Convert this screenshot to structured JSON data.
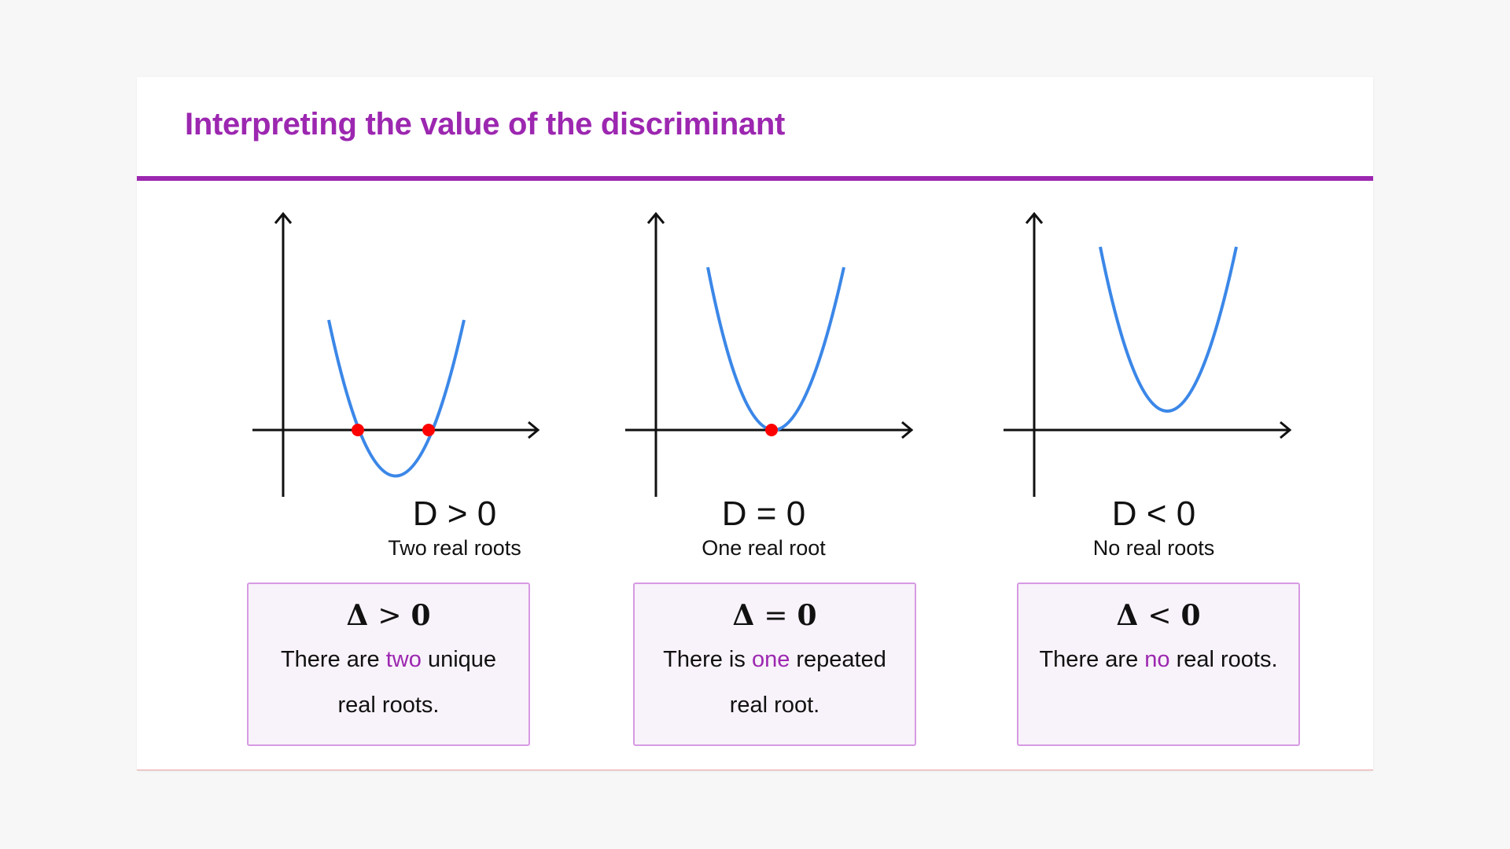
{
  "title": "Interpreting the value of the discriminant",
  "colors": {
    "accent": "#9c27b0",
    "curve": "#3b87e8",
    "root_point": "#ff0000",
    "axis": "#111111",
    "box_border": "#d79ae3",
    "box_fill": "#f8f2fa"
  },
  "cases": [
    {
      "relation": "D > 0",
      "description": "Two real roots",
      "symbol": "Δ",
      "operator": ">",
      "value": "0",
      "text_before": "There are ",
      "highlight": "two",
      "text_after": " unique real roots.",
      "root_count": 2
    },
    {
      "relation": "D = 0",
      "description": "One real root",
      "symbol": "Δ",
      "operator": "=",
      "value": "0",
      "text_before": "There is ",
      "highlight": "one",
      "text_after": " repeated real root.",
      "root_count": 1
    },
    {
      "relation": "D < 0",
      "description": "No real roots",
      "symbol": "Δ",
      "operator": "<",
      "value": "0",
      "text_before": "There are ",
      "highlight": "no",
      "text_after": " real roots.",
      "root_count": 0
    }
  ]
}
